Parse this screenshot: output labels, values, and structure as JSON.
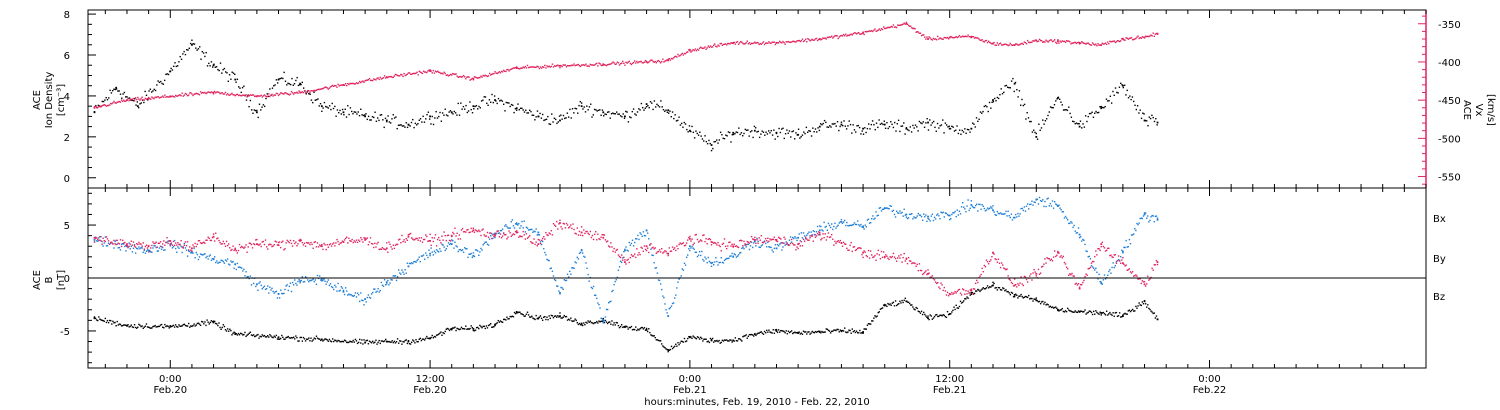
{
  "colors": {
    "black": "#000000",
    "pink": "#e0245e",
    "blue": "#1f7fd6"
  },
  "xaxis": {
    "title": "hours:minutes, Feb. 19, 2010 - Feb. 22, 2010",
    "range_hours": [
      -3.8,
      58.0
    ],
    "ticks": [
      {
        "h": 0,
        "time": "0:00",
        "date": "Feb.20"
      },
      {
        "h": 12,
        "time": "12:00",
        "date": "Feb.20"
      },
      {
        "h": 24,
        "time": "0:00",
        "date": "Feb.21"
      },
      {
        "h": 36,
        "time": "12:00",
        "date": "Feb.21"
      },
      {
        "h": 48,
        "time": "0:00",
        "date": "Feb.22"
      }
    ]
  },
  "chart_data": [
    {
      "type": "scatter",
      "panel": "top",
      "ylabel_left": [
        "ACE",
        "Ion Density",
        "[cm⁻³]"
      ],
      "ylabel_right": [
        "ACE",
        "Vx",
        "[km/s]"
      ],
      "ylim_left": [
        -0.5,
        8.2
      ],
      "ylim_right": [
        -565,
        -332
      ],
      "yticks_left": [
        0,
        2,
        4,
        6,
        8
      ],
      "yticks_right": [
        -550,
        -500,
        -450,
        -400,
        -350
      ],
      "series": [
        {
          "axis": "left",
          "color": "black",
          "x_hours": [
            -3.5,
            -2.5,
            -1.5,
            0,
            1,
            2,
            3,
            4,
            5,
            6,
            7,
            8,
            9,
            10,
            11,
            12,
            13,
            14,
            15,
            16,
            17,
            18,
            19,
            20,
            21,
            22,
            23,
            24,
            25,
            26,
            27,
            28,
            29,
            30,
            31,
            32,
            33,
            34,
            35,
            36,
            37,
            38,
            39,
            40,
            41,
            42,
            43,
            44,
            45,
            45.6
          ],
          "values": [
            3.2,
            4.4,
            3.5,
            5.2,
            6.5,
            5.5,
            4.8,
            3.2,
            4.8,
            4.6,
            3.5,
            3.2,
            3.0,
            2.8,
            2.6,
            3.0,
            3.2,
            3.5,
            3.8,
            3.4,
            3.0,
            2.8,
            3.5,
            3.2,
            3.0,
            3.6,
            3.3,
            2.3,
            1.6,
            2.2,
            2.3,
            2.2,
            2.1,
            2.5,
            2.6,
            2.4,
            2.6,
            2.4,
            2.7,
            2.4,
            2.4,
            3.8,
            4.6,
            2.0,
            3.9,
            2.5,
            3.4,
            4.5,
            2.8,
            2.7
          ]
        },
        {
          "axis": "right",
          "color": "pink",
          "x_hours": [
            -3.5,
            -2,
            -1,
            0,
            2,
            4,
            6,
            8,
            10,
            12,
            14,
            16,
            18,
            20,
            22,
            23,
            24,
            26,
            28,
            30,
            32,
            34,
            35,
            36,
            37,
            38,
            39,
            40,
            41,
            42,
            43,
            44,
            45,
            45.6
          ],
          "values": [
            -460,
            -450,
            -448,
            -445,
            -440,
            -445,
            -440,
            -430,
            -420,
            -412,
            -422,
            -408,
            -405,
            -403,
            -400,
            -398,
            -385,
            -375,
            -375,
            -370,
            -362,
            -350,
            -370,
            -368,
            -367,
            -376,
            -378,
            -372,
            -373,
            -375,
            -378,
            -370,
            -368,
            -363
          ]
        }
      ]
    },
    {
      "type": "scatter",
      "panel": "bottom",
      "ylabel_left": [
        "ACE",
        "B",
        "[nT]"
      ],
      "ylim": [
        -8.5,
        8.5
      ],
      "yticks": [
        -5,
        0,
        5
      ],
      "series": [
        {
          "name": "Bx",
          "color": "black",
          "x_hours": [
            -3.5,
            -2,
            0,
            2,
            3,
            5,
            7,
            9,
            10,
            11,
            12,
            13,
            14,
            15,
            16,
            17,
            18,
            19,
            20,
            21,
            22,
            23,
            24,
            25,
            26,
            27,
            28,
            29,
            30,
            31,
            32,
            33,
            34,
            35,
            36,
            37,
            38,
            39,
            40,
            41,
            42,
            43,
            44,
            45,
            45.6
          ],
          "values": [
            -3.8,
            -4.5,
            -4.6,
            -4.2,
            -5.3,
            -5.6,
            -5.8,
            -6.1,
            -6.0,
            -6.0,
            -5.7,
            -4.8,
            -4.8,
            -4.4,
            -3.2,
            -3.8,
            -3.6,
            -4.3,
            -4.0,
            -4.6,
            -4.9,
            -6.8,
            -5.6,
            -5.9,
            -5.9,
            -5.3,
            -5.0,
            -5.2,
            -5.1,
            -5.0,
            -5.1,
            -2.6,
            -2.2,
            -3.8,
            -3.4,
            -1.4,
            -0.7,
            -1.6,
            -2.1,
            -3.0,
            -3.2,
            -3.3,
            -3.6,
            -2.2,
            -3.9
          ]
        },
        {
          "name": "By",
          "color": "blue",
          "x_hours": [
            -3.5,
            -2,
            -1,
            0,
            1,
            2,
            3,
            4,
            5,
            6,
            7,
            8,
            9,
            10,
            11,
            12,
            13,
            14,
            15,
            16,
            17,
            18,
            19,
            20,
            21,
            22,
            23,
            24,
            25,
            26,
            27,
            28,
            29,
            30,
            31,
            32,
            33,
            34,
            35,
            36,
            37,
            38,
            39,
            40,
            41,
            42,
            43,
            44,
            45,
            45.6
          ],
          "values": [
            3.6,
            3.0,
            2.6,
            3.2,
            2.4,
            1.8,
            1.3,
            -0.6,
            -1.5,
            -0.3,
            -0.1,
            -1.3,
            -2.0,
            -0.4,
            1.1,
            2.3,
            3.2,
            2.1,
            4.2,
            5.1,
            4.3,
            -1.4,
            2.6,
            -4.2,
            2.6,
            4.5,
            -3.6,
            3.0,
            1.4,
            2.0,
            3.5,
            2.8,
            3.8,
            4.5,
            5.3,
            4.8,
            6.6,
            6.0,
            5.8,
            5.9,
            6.9,
            6.4,
            5.7,
            7.4,
            6.8,
            4.1,
            -0.5,
            2.5,
            6.0,
            5.5
          ]
        },
        {
          "name": "Bz",
          "color": "pink",
          "x_hours": [
            -3.5,
            -2,
            -1,
            0,
            1,
            2,
            3,
            4,
            5,
            6,
            7,
            8,
            9,
            10,
            11,
            12,
            13,
            14,
            15,
            16,
            17,
            18,
            19,
            20,
            21,
            22,
            23,
            24,
            25,
            26,
            27,
            28,
            29,
            30,
            31,
            32,
            33,
            34,
            35,
            36,
            37,
            38,
            39,
            40,
            41,
            42,
            43,
            44,
            45,
            45.6
          ],
          "values": [
            3.8,
            3.2,
            3.0,
            3.5,
            2.8,
            3.9,
            2.7,
            3.2,
            3.1,
            3.5,
            3.0,
            3.4,
            3.6,
            2.8,
            3.9,
            3.5,
            4.0,
            4.5,
            4.0,
            4.3,
            3.2,
            5.2,
            4.3,
            3.8,
            1.5,
            3.0,
            2.3,
            3.7,
            3.4,
            3.0,
            3.6,
            3.6,
            3.2,
            4.1,
            3.3,
            2.4,
            2.0,
            1.8,
            0.4,
            -1.5,
            -1.2,
            2.4,
            -0.7,
            0.4,
            2.4,
            -1.0,
            3.2,
            1.4,
            -0.6,
            1.5
          ]
        }
      ]
    }
  ]
}
